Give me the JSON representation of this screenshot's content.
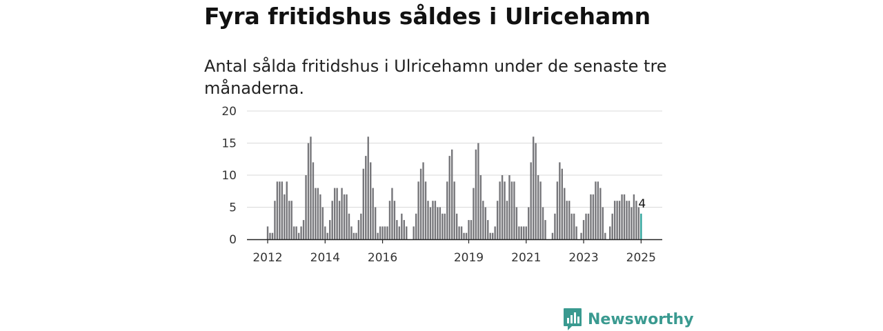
{
  "header": {
    "title": "Fyra fritidshus såldes i Ulricehamn",
    "subtitle": "Antal sålda fritidshus i Ulricehamn under de senaste tre månaderna."
  },
  "brand": {
    "name": "Newsworthy",
    "color": "#3a9a90",
    "icon": "bar-chart-speech-bubble-icon"
  },
  "colors": {
    "bar": "#76767a",
    "highlight": "#2aa198",
    "grid": "#d9d9d9",
    "axis": "#222222"
  },
  "chart_data": {
    "type": "bar",
    "title": "",
    "xlabel": "",
    "ylabel": "",
    "ylim": [
      0,
      20
    ],
    "yticks": [
      0,
      5,
      10,
      15,
      20
    ],
    "grid": true,
    "legend": "none",
    "x_tick_labels": [
      {
        "label": "2012",
        "index": 0
      },
      {
        "label": "2014",
        "index": 24
      },
      {
        "label": "2016",
        "index": 48
      },
      {
        "label": "2019",
        "index": 84
      },
      {
        "label": "2021",
        "index": 108
      },
      {
        "label": "2023",
        "index": 132
      },
      {
        "label": "2025",
        "index": 156
      }
    ],
    "series": [
      {
        "values": [
          2,
          1,
          1,
          6,
          9,
          9,
          9,
          7,
          9,
          6,
          6,
          2,
          2,
          1,
          2,
          3,
          10,
          15,
          16,
          12,
          8,
          8,
          7,
          5,
          2,
          1,
          3,
          6,
          8,
          8,
          6,
          8,
          7,
          7,
          4,
          2,
          1,
          1,
          3,
          4,
          11,
          13,
          16,
          12,
          8,
          5,
          1,
          2,
          2,
          2,
          2,
          6,
          8,
          6,
          3,
          2,
          4,
          3,
          2,
          0,
          0,
          2,
          4,
          9,
          11,
          12,
          9,
          6,
          5,
          6,
          6,
          5,
          5,
          4,
          4,
          9,
          13,
          14,
          9,
          4,
          2,
          2,
          1,
          1,
          3,
          3,
          8,
          14,
          15,
          10,
          6,
          5,
          3,
          1,
          1,
          2,
          6,
          9,
          10,
          9,
          6,
          10,
          9,
          9,
          5,
          2,
          2,
          2,
          2,
          5,
          12,
          16,
          15,
          10,
          9,
          5,
          3,
          0,
          0,
          1,
          4,
          9,
          12,
          11,
          8,
          6,
          6,
          4,
          4,
          2,
          0,
          1,
          3,
          4,
          4,
          7,
          7,
          9,
          9,
          8,
          5,
          1,
          0,
          2,
          4,
          6,
          6,
          6,
          7,
          7,
          6,
          6,
          5,
          7,
          6,
          5,
          4
        ],
        "highlight_last": true
      }
    ],
    "annotations": [
      {
        "index": 156,
        "text": "4"
      }
    ]
  }
}
